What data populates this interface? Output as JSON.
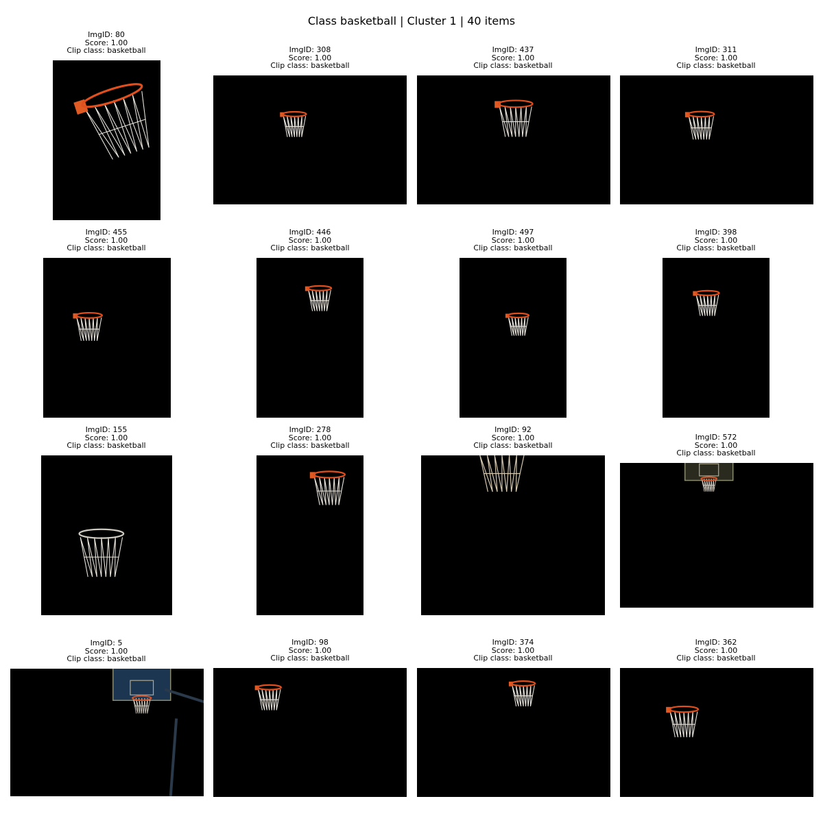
{
  "title": "Class basketball | Cluster 1 | 40 items",
  "label_imgid": "ImgID:",
  "label_score": "Score:",
  "label_clip": "Clip class:",
  "items": [
    {
      "imgid": "80",
      "score": "1.00",
      "clip_class": "basketball"
    },
    {
      "imgid": "308",
      "score": "1.00",
      "clip_class": "basketball"
    },
    {
      "imgid": "437",
      "score": "1.00",
      "clip_class": "basketball"
    },
    {
      "imgid": "311",
      "score": "1.00",
      "clip_class": "basketball"
    },
    {
      "imgid": "455",
      "score": "1.00",
      "clip_class": "basketball"
    },
    {
      "imgid": "446",
      "score": "1.00",
      "clip_class": "basketball"
    },
    {
      "imgid": "497",
      "score": "1.00",
      "clip_class": "basketball"
    },
    {
      "imgid": "398",
      "score": "1.00",
      "clip_class": "basketball"
    },
    {
      "imgid": "155",
      "score": "1.00",
      "clip_class": "basketball"
    },
    {
      "imgid": "278",
      "score": "1.00",
      "clip_class": "basketball"
    },
    {
      "imgid": "92",
      "score": "1.00",
      "clip_class": "basketball"
    },
    {
      "imgid": "572",
      "score": "1.00",
      "clip_class": "basketball"
    },
    {
      "imgid": "5",
      "score": "1.00",
      "clip_class": "basketball"
    },
    {
      "imgid": "98",
      "score": "1.00",
      "clip_class": "basketball"
    },
    {
      "imgid": "374",
      "score": "1.00",
      "clip_class": "basketball"
    },
    {
      "imgid": "362",
      "score": "1.00",
      "clip_class": "basketball"
    }
  ],
  "colors": {
    "background": "#000000",
    "rim": "#e0501e",
    "net": "#e8e4dc"
  }
}
